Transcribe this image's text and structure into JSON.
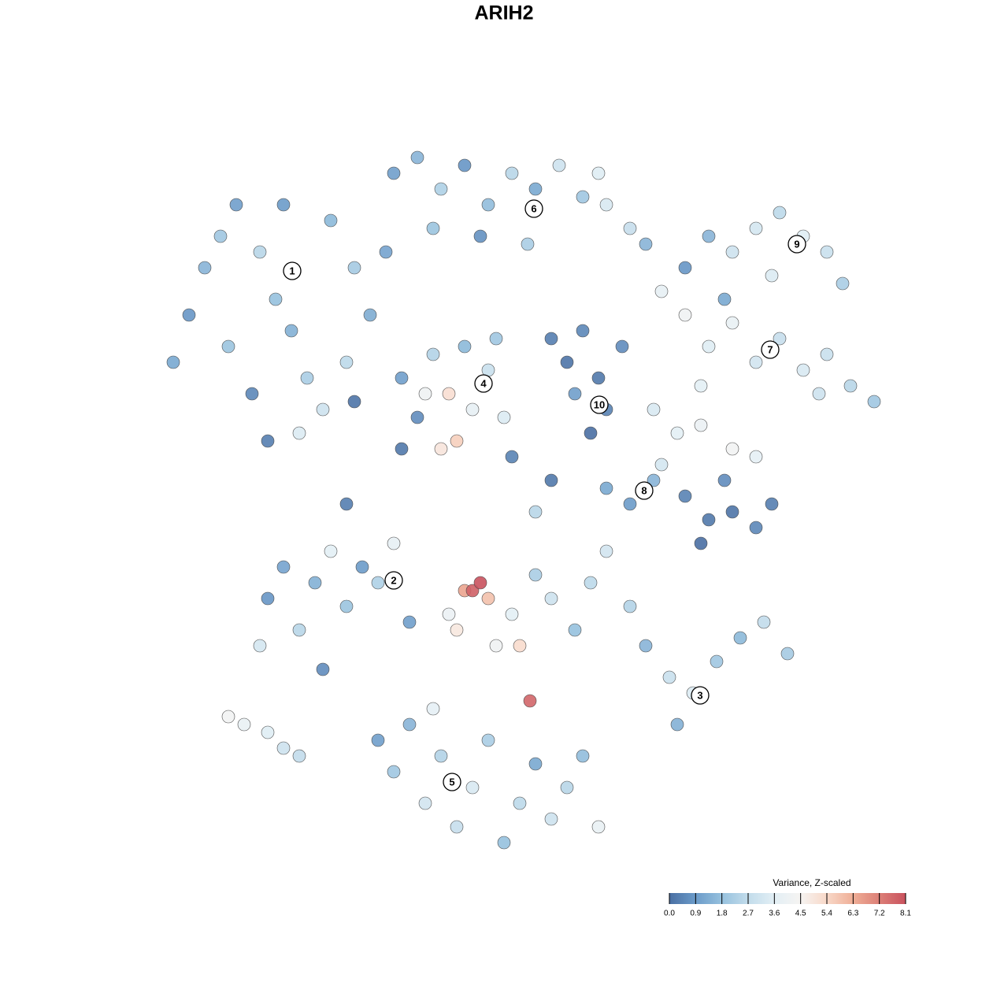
{
  "chart_data": {
    "type": "scatter",
    "title": "ARIH2",
    "xlim": [
      0,
      95
    ],
    "ylim": [
      0,
      92
    ],
    "x": [
      2,
      4,
      6,
      8,
      10,
      13,
      15,
      17,
      19,
      21,
      12,
      14,
      18,
      22,
      25,
      27,
      24,
      9,
      16,
      29,
      30,
      33,
      36,
      39,
      42,
      45,
      48,
      51,
      54,
      57,
      60,
      62,
      35,
      41,
      47,
      56,
      31,
      33,
      35,
      37,
      38,
      40,
      42,
      44,
      36,
      39,
      43,
      34,
      50,
      52,
      54,
      56,
      57,
      55,
      59,
      53,
      67,
      70,
      73,
      76,
      79,
      82,
      85,
      87,
      72,
      78,
      64,
      67,
      70,
      73,
      76,
      79,
      82,
      85,
      88,
      91,
      69,
      84,
      63,
      66,
      69,
      64,
      73,
      76,
      57,
      60,
      63,
      67,
      70,
      73,
      76,
      78,
      72,
      69,
      25,
      31,
      24,
      45,
      50,
      48,
      14,
      16,
      18,
      20,
      22,
      24,
      26,
      28,
      30,
      13,
      21,
      32,
      9,
      11,
      14,
      16,
      18,
      37,
      39,
      40,
      41,
      42,
      38,
      43,
      46,
      47.3,
      45,
      48,
      50,
      53,
      55,
      57,
      60,
      62,
      65,
      68,
      71,
      74,
      77,
      80,
      66,
      28,
      30,
      32,
      34,
      36,
      38,
      40,
      42,
      44,
      46,
      48,
      50,
      52,
      54,
      35,
      56
    ],
    "y": [
      64,
      70,
      76,
      80,
      84,
      78,
      72,
      68,
      62,
      58,
      60,
      54,
      55,
      82,
      76,
      70,
      64,
      66,
      84,
      78,
      88,
      90,
      86,
      89,
      84,
      88,
      86,
      89,
      85,
      84,
      81,
      79,
      81,
      80,
      79,
      88,
      62,
      57,
      65,
      60,
      54,
      58,
      63,
      57,
      53,
      66,
      67,
      60,
      67,
      64,
      68,
      62,
      58,
      55,
      66,
      60,
      76,
      80,
      78,
      81,
      83,
      80,
      78,
      74,
      72,
      75,
      73,
      70,
      66,
      69,
      64,
      67,
      63,
      65,
      61,
      59,
      61,
      60,
      58,
      55,
      56,
      51,
      53,
      52,
      48,
      46,
      49,
      47,
      44,
      45,
      43,
      46,
      49,
      41,
      59,
      53,
      46,
      52,
      49,
      45,
      34,
      38,
      30,
      36,
      40,
      33,
      38,
      36,
      41,
      28,
      25,
      31,
      19,
      18,
      17,
      15,
      14,
      32,
      35,
      35,
      36,
      34,
      30,
      28,
      28,
      21,
      32,
      37,
      34,
      30,
      36,
      40,
      33,
      28,
      24,
      22,
      26,
      29,
      31,
      27,
      18,
      16,
      12,
      18,
      8,
      14,
      5,
      10,
      16,
      3,
      8,
      13,
      6,
      10,
      14,
      20,
      5
    ],
    "values": [
      1.2,
      0.8,
      1.5,
      2.0,
      1.0,
      2.5,
      1.8,
      1.4,
      2.2,
      3.0,
      0.5,
      0.3,
      3.4,
      1.6,
      2.1,
      1.3,
      2.6,
      1.9,
      0.9,
      1.1,
      1.0,
      1.5,
      2.3,
      0.8,
      1.7,
      2.5,
      1.2,
      3.0,
      2.0,
      3.3,
      2.8,
      1.5,
      1.9,
      0.7,
      2.2,
      3.5,
      1.0,
      0.6,
      2.4,
      5.2,
      5.6,
      3.8,
      2.9,
      3.4,
      5.0,
      1.6,
      2.0,
      4.1,
      0.3,
      0.1,
      0.5,
      0.2,
      0.4,
      0.0,
      0.6,
      1.0,
      0.8,
      1.5,
      3.0,
      3.2,
      2.6,
      3.5,
      2.9,
      2.2,
      1.2,
      3.4,
      3.8,
      4.2,
      3.5,
      3.9,
      3.1,
      2.8,
      3.3,
      2.9,
      2.5,
      2.0,
      3.6,
      3.0,
      3.3,
      3.6,
      4.0,
      3.2,
      4.3,
      3.7,
      1.2,
      0.9,
      1.5,
      0.4,
      0.2,
      0.1,
      0.5,
      0.3,
      0.6,
      0.0,
      0.1,
      0.2,
      0.3,
      0.4,
      0.2,
      2.5,
      0.8,
      1.1,
      2.5,
      1.4,
      3.6,
      1.9,
      0.9,
      2.3,
      3.8,
      3.2,
      0.6,
      1.0,
      4.3,
      3.9,
      3.5,
      3.0,
      2.7,
      4.0,
      6.5,
      7.8,
      8.1,
      5.9,
      4.9,
      4.2,
      5.3,
      7.7,
      3.6,
      2.2,
      3.0,
      1.8,
      2.6,
      3.1,
      2.4,
      1.5,
      2.9,
      3.4,
      2.0,
      1.6,
      2.7,
      2.1,
      1.4,
      1.0,
      2.0,
      1.5,
      3.1,
      2.4,
      2.8,
      3.3,
      2.2,
      1.8,
      2.6,
      1.2,
      3.0,
      2.5,
      1.7,
      3.7,
      3.9
    ],
    "labels": [
      {
        "text": "1",
        "x": 17.1,
        "y": 75.6
      },
      {
        "text": "2",
        "x": 30,
        "y": 36.3
      },
      {
        "text": "3",
        "x": 68.9,
        "y": 21.7
      },
      {
        "text": "4",
        "x": 41.4,
        "y": 61.3
      },
      {
        "text": "5",
        "x": 37.4,
        "y": 10.7
      },
      {
        "text": "6",
        "x": 47.8,
        "y": 83.5
      },
      {
        "text": "7",
        "x": 77.8,
        "y": 65.6
      },
      {
        "text": "8",
        "x": 61.8,
        "y": 47.7
      },
      {
        "text": "9",
        "x": 81.2,
        "y": 79
      },
      {
        "text": "10",
        "x": 56.1,
        "y": 58.6
      }
    ],
    "colorbar_title": "Variance, Z-scaled",
    "clim": [
      0,
      8.1
    ],
    "cticks": [
      {
        "value": 0,
        "label": "0.0"
      },
      0.9,
      1.8,
      2.7,
      3.6,
      4.5,
      5.4,
      6.3,
      7.2,
      8.1
    ],
    "colormap": [
      "#4a6fa3",
      "#6b9bc9",
      "#96c1de",
      "#c2dceb",
      "#e3eff5",
      "#f6f4f2",
      "#f8d8c8",
      "#efae96",
      "#dc7f77",
      "#c9525e"
    ]
  }
}
